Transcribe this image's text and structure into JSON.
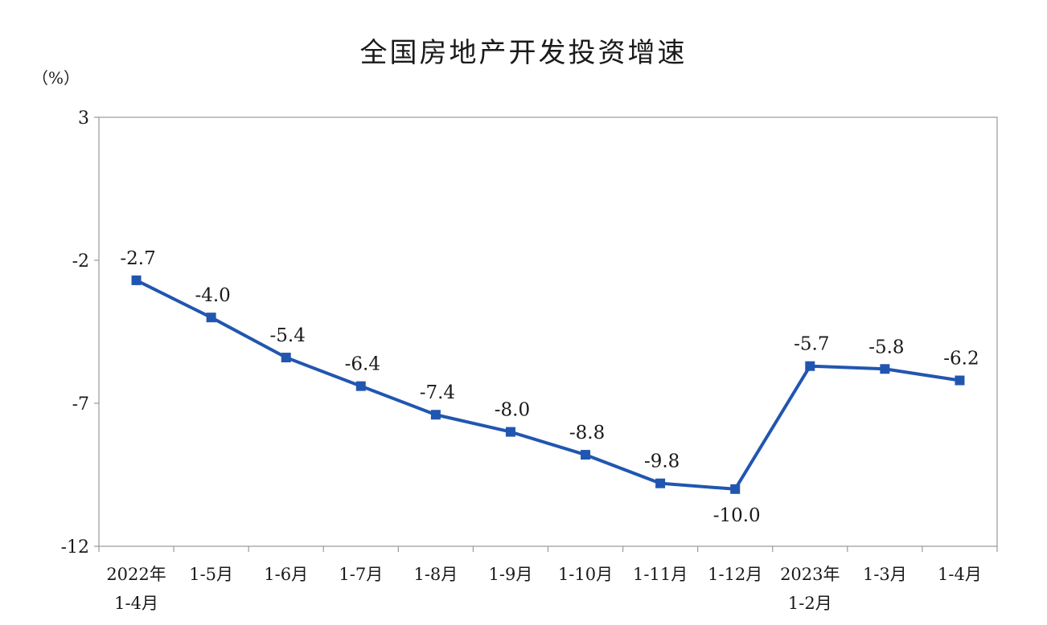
{
  "chart_data": {
    "type": "line",
    "title": "全国房地产开发投资增速",
    "ylabel": "（%）",
    "ylim": [
      -12,
      3
    ],
    "yticks": [
      3,
      -2,
      -7,
      -12
    ],
    "categories": [
      [
        "2022年",
        "1-4月"
      ],
      [
        "1-5月"
      ],
      [
        "1-6月"
      ],
      [
        "1-7月"
      ],
      [
        "1-8月"
      ],
      [
        "1-9月"
      ],
      [
        "1-10月"
      ],
      [
        "1-11月"
      ],
      [
        "1-12月"
      ],
      [
        "2023年",
        "1-2月"
      ],
      [
        "1-3月"
      ],
      [
        "1-4月"
      ]
    ],
    "values": [
      -2.7,
      -4.0,
      -5.4,
      -6.4,
      -7.4,
      -8.0,
      -8.8,
      -9.8,
      -10.0,
      -5.7,
      -5.8,
      -6.2
    ],
    "value_labels": [
      "-2.7",
      "-4.0",
      "-5.4",
      "-6.4",
      "-7.4",
      "-8.0",
      "-8.8",
      "-9.8",
      "-10.0",
      "-5.7",
      "-5.8",
      "-6.2"
    ],
    "label_below": [
      false,
      false,
      false,
      false,
      false,
      false,
      false,
      false,
      true,
      false,
      false,
      false
    ],
    "grid": false,
    "line_color": "#2156b0"
  }
}
